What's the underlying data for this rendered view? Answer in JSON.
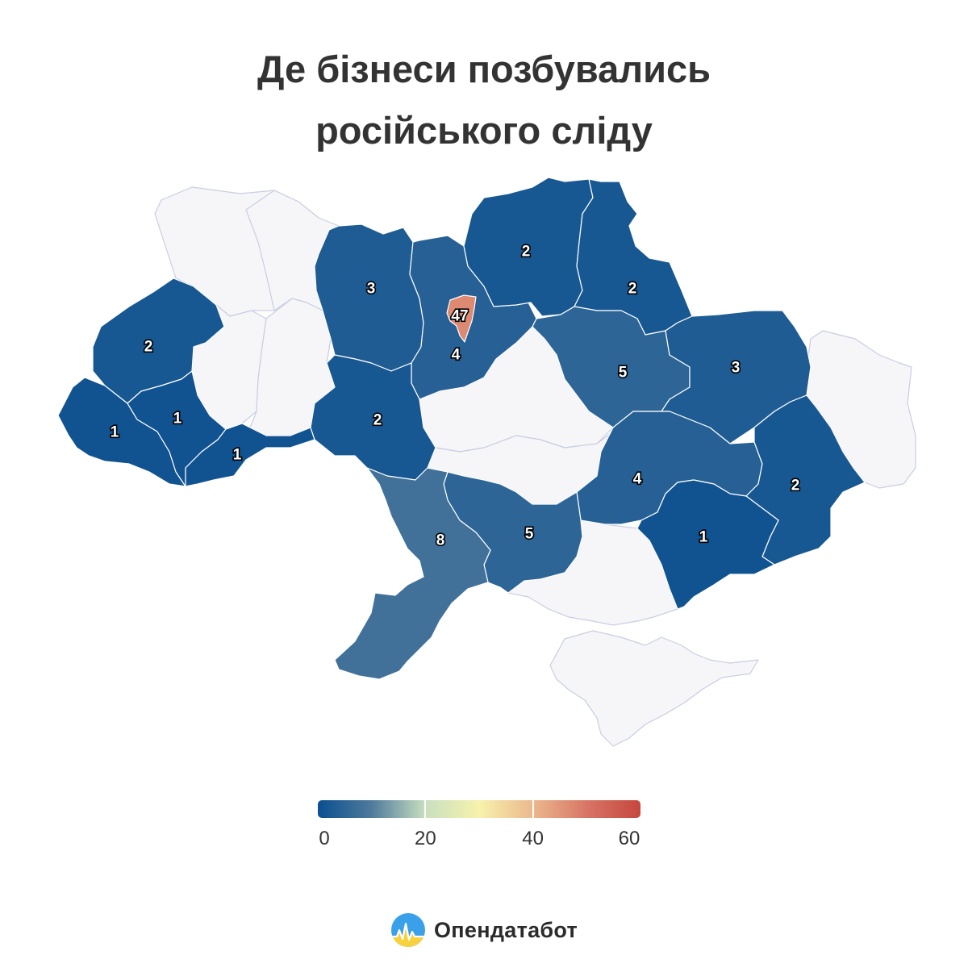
{
  "title": {
    "line1": "Де бізнеси позбувались",
    "line2": "російського сліду"
  },
  "colors": {
    "no_data": "#f6f6f8",
    "no_data_border": "#c9cde3",
    "scale": [
      "#0a4f90",
      "#4f7a9b",
      "#c8dfc0",
      "#f7f2ad",
      "#ecb88d",
      "#d87566",
      "#c6473d"
    ]
  },
  "legend": {
    "min": 0,
    "max": 60,
    "ticks": [
      {
        "value": 0,
        "label": "0"
      },
      {
        "value": 20,
        "label": "20"
      },
      {
        "value": 40,
        "label": "40"
      },
      {
        "value": 60,
        "label": "60"
      }
    ]
  },
  "map_data": {
    "regions": [
      {
        "id": "lviv",
        "value": 2
      },
      {
        "id": "zakarpattia",
        "value": 1
      },
      {
        "id": "ivano-frankivsk",
        "value": 1
      },
      {
        "id": "chernivtsi",
        "value": 1
      },
      {
        "id": "zhytomyr",
        "value": 3
      },
      {
        "id": "kyiv-oblast",
        "value": 4
      },
      {
        "id": "kyiv-city",
        "value": 47
      },
      {
        "id": "chernihiv",
        "value": 2
      },
      {
        "id": "sumy",
        "value": 2
      },
      {
        "id": "poltava",
        "value": 5
      },
      {
        "id": "kharkiv",
        "value": 3
      },
      {
        "id": "vinnytsia",
        "value": 2
      },
      {
        "id": "dnipropetrovsk",
        "value": 4
      },
      {
        "id": "donetsk",
        "value": 2
      },
      {
        "id": "zaporizhzhia",
        "value": 1
      },
      {
        "id": "mykolaiv",
        "value": 5
      },
      {
        "id": "odesa",
        "value": 8
      },
      {
        "id": "volyn",
        "value": null
      },
      {
        "id": "rivne",
        "value": null
      },
      {
        "id": "ternopil",
        "value": null
      },
      {
        "id": "khmelnytskyi",
        "value": null
      },
      {
        "id": "cherkasy",
        "value": null
      },
      {
        "id": "kirovohrad",
        "value": null
      },
      {
        "id": "kherson",
        "value": null
      },
      {
        "id": "crimea",
        "value": null
      },
      {
        "id": "luhansk",
        "value": null
      }
    ]
  },
  "brand": {
    "logo": "opendatabot-logo-icon",
    "name": "Опендатабот"
  }
}
